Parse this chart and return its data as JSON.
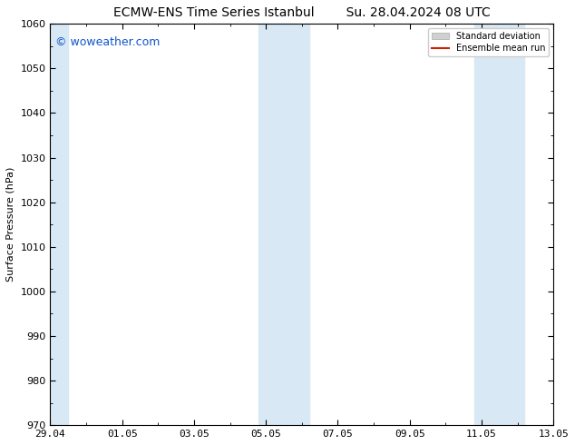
{
  "title_left": "ECMW-ENS Time Series Istanbul",
  "title_right": "Su. 28.04.2024 08 UTC",
  "ylabel": "Surface Pressure (hPa)",
  "ylim": [
    970,
    1060
  ],
  "yticks": [
    970,
    980,
    990,
    1000,
    1010,
    1020,
    1030,
    1040,
    1050,
    1060
  ],
  "xtick_labels": [
    "29.04",
    "01.05",
    "03.05",
    "05.05",
    "07.05",
    "09.05",
    "11.05",
    "13.05"
  ],
  "watermark": "© woweather.com",
  "watermark_color": "#1155cc",
  "background_color": "#ffffff",
  "plot_bg_color": "#ffffff",
  "shaded_color": "#d8e8f4",
  "legend_std_color": "#d0d0d0",
  "legend_mean_color": "#cc2200",
  "title_fontsize": 10,
  "tick_fontsize": 8,
  "ylabel_fontsize": 8,
  "band_ranges": [
    [
      0.0,
      0.5
    ],
    [
      5.8,
      6.5
    ],
    [
      6.5,
      7.2
    ],
    [
      11.8,
      12.5
    ],
    [
      12.5,
      13.2
    ]
  ]
}
